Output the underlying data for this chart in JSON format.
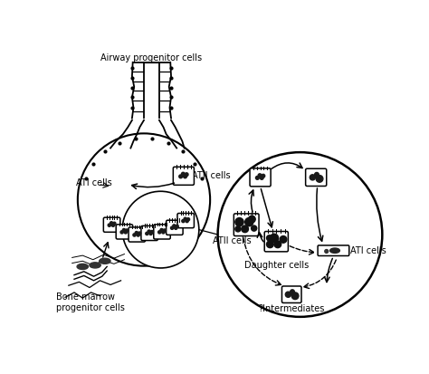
{
  "bg_color": "#ffffff",
  "line_color": "#000000",
  "fig_width": 4.74,
  "fig_height": 4.13,
  "dpi": 100,
  "labels": {
    "airway_progenitor": "Airway progenitor cells",
    "ati_cells_left": "ATI cells",
    "atii_cells_right": "ATII cells",
    "bone_marrow": "Bone marrow\nprogenitor cells",
    "atii_circle": "ATII cells",
    "daughter_cells": "Daughter cells",
    "ati_circle": "ATI cells",
    "intermediates": "?Intermediates"
  },
  "font_size": 7.0
}
